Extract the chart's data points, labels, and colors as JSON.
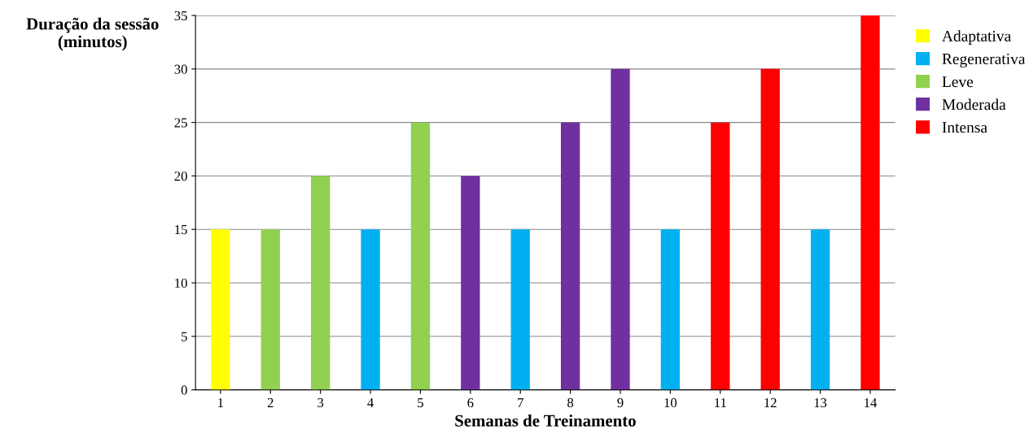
{
  "chart_data": {
    "type": "bar",
    "xlabel": "Semanas de Treinamento",
    "ylabel": "Duração da sessão\n(minutos)",
    "categories": [
      "1",
      "2",
      "3",
      "4",
      "5",
      "6",
      "7",
      "8",
      "9",
      "10",
      "11",
      "12",
      "13",
      "14"
    ],
    "series": [
      {
        "name": "Adaptativa",
        "color": "#ffff00",
        "values": [
          15,
          null,
          null,
          null,
          null,
          null,
          null,
          null,
          null,
          null,
          null,
          null,
          null,
          null
        ]
      },
      {
        "name": "Regenerativa",
        "color": "#00b0f0",
        "values": [
          null,
          null,
          null,
          15,
          null,
          null,
          15,
          null,
          null,
          15,
          null,
          null,
          15,
          null
        ]
      },
      {
        "name": "Leve",
        "color": "#92d050",
        "values": [
          null,
          15,
          20,
          null,
          25,
          null,
          null,
          null,
          null,
          null,
          null,
          null,
          null,
          null
        ]
      },
      {
        "name": "Moderada",
        "color": "#7030a0",
        "values": [
          null,
          null,
          null,
          null,
          null,
          20,
          null,
          25,
          30,
          null,
          null,
          null,
          null,
          null
        ]
      },
      {
        "name": "Intensa",
        "color": "#ff0000",
        "values": [
          null,
          null,
          null,
          null,
          null,
          null,
          null,
          null,
          null,
          null,
          25,
          30,
          null,
          35
        ]
      }
    ],
    "ylim": [
      0,
      35
    ],
    "yticks": [
      0,
      5,
      10,
      15,
      20,
      25,
      30,
      35
    ],
    "grid": "y",
    "legend": "top right"
  }
}
